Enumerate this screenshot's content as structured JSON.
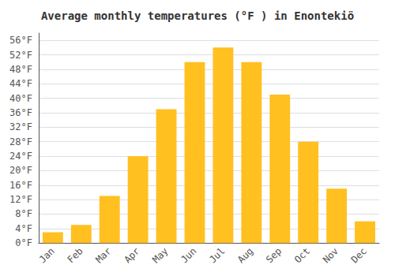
{
  "chart_data": {
    "type": "bar",
    "title": "Average monthly temperatures (°F ) in Enontekiö",
    "categories": [
      "Jan",
      "Feb",
      "Mar",
      "Apr",
      "May",
      "Jun",
      "Jul",
      "Aug",
      "Sep",
      "Oct",
      "Nov",
      "Dec"
    ],
    "values": [
      3,
      5,
      13,
      24,
      37,
      50,
      54,
      50,
      41,
      28,
      15,
      6
    ],
    "color": "#FFC020",
    "ylim": [
      0,
      58
    ],
    "yticks": [
      {
        "value": 0,
        "label": "0°F"
      },
      {
        "value": 4,
        "label": "4°F"
      },
      {
        "value": 8,
        "label": "8°F"
      },
      {
        "value": 12,
        "label": "12°F"
      },
      {
        "value": 16,
        "label": "16°F"
      },
      {
        "value": 20,
        "label": "20°F"
      },
      {
        "value": 24,
        "label": "24°F"
      },
      {
        "value": 28,
        "label": "28°F"
      },
      {
        "value": 32,
        "label": "32°F"
      },
      {
        "value": 36,
        "label": "36°F"
      },
      {
        "value": 40,
        "label": "40°F"
      },
      {
        "value": 44,
        "label": "44°F"
      },
      {
        "value": 48,
        "label": "48°F"
      },
      {
        "value": 52,
        "label": "52°F"
      },
      {
        "value": 56,
        "label": "56°F"
      }
    ],
    "grid": true
  }
}
